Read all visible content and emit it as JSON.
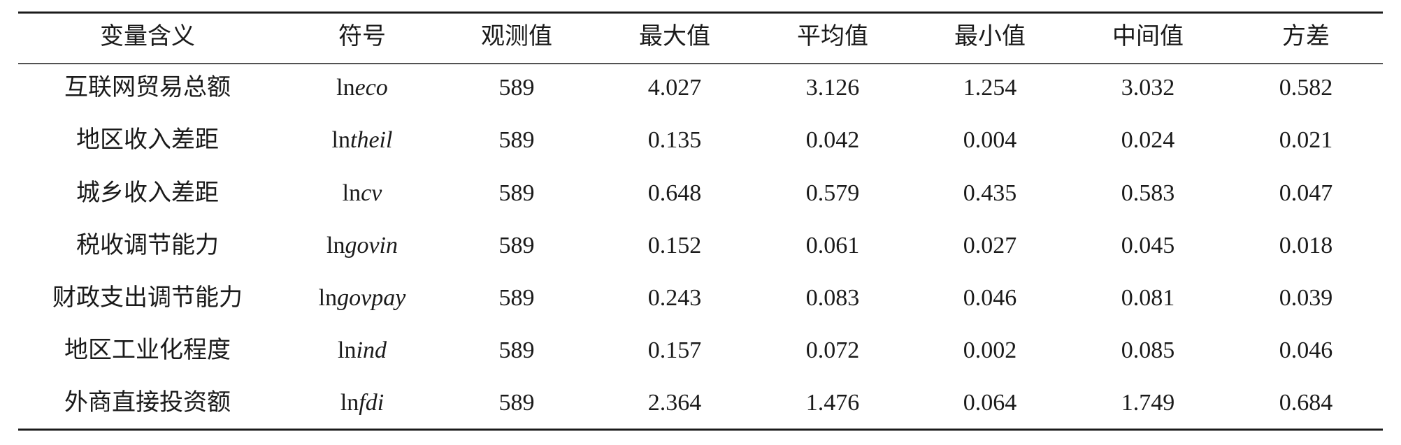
{
  "table": {
    "header": [
      "变量含义",
      "符号",
      "观测值",
      "最大值",
      "平均值",
      "最小值",
      "中间值",
      "方差"
    ],
    "rows": [
      {
        "name": "互联网贸易总额",
        "symbol": {
          "prefix": "ln",
          "italic": "eco"
        },
        "values": [
          "589",
          "4.027",
          "3.126",
          "1.254",
          "3.032",
          "0.582"
        ]
      },
      {
        "name": "地区收入差距",
        "symbol": {
          "prefix": "ln",
          "italic": "theil"
        },
        "values": [
          "589",
          "0.135",
          "0.042",
          "0.004",
          "0.024",
          "0.021"
        ]
      },
      {
        "name": "城乡收入差距",
        "symbol": {
          "prefix": "ln",
          "italic": "cv"
        },
        "values": [
          "589",
          "0.648",
          "0.579",
          "0.435",
          "0.583",
          "0.047"
        ]
      },
      {
        "name": "税收调节能力",
        "symbol": {
          "prefix": "ln",
          "italic": "govin"
        },
        "values": [
          "589",
          "0.152",
          "0.061",
          "0.027",
          "0.045",
          "0.018"
        ]
      },
      {
        "name": "财政支出调节能力",
        "symbol": {
          "prefix": "ln",
          "italic": "govpay"
        },
        "values": [
          "589",
          "0.243",
          "0.083",
          "0.046",
          "0.081",
          "0.039"
        ]
      },
      {
        "name": "地区工业化程度",
        "symbol": {
          "prefix": "ln",
          "italic": "ind"
        },
        "values": [
          "589",
          "0.157",
          "0.072",
          "0.002",
          "0.085",
          "0.046"
        ]
      },
      {
        "name": "外商直接投资额",
        "symbol": {
          "prefix": "ln",
          "italic": "fdi"
        },
        "values": [
          "589",
          "2.364",
          "1.476",
          "0.064",
          "1.749",
          "0.684"
        ]
      }
    ]
  }
}
